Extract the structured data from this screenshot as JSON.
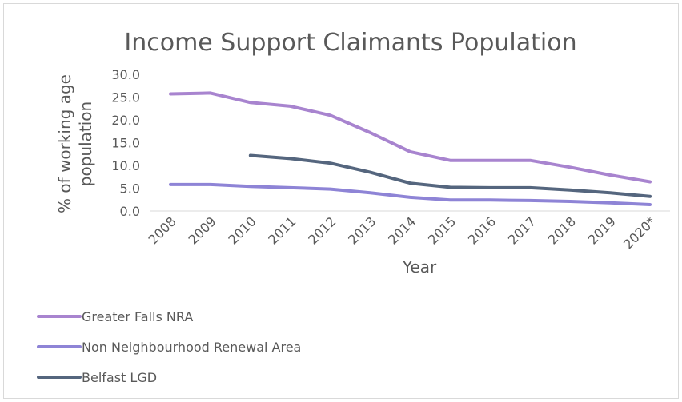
{
  "chart_data": {
    "type": "line",
    "title": "Income Support Claimants Population",
    "xlabel": "Year",
    "ylabel": "% of working age population",
    "ylim": [
      0,
      30
    ],
    "yticks": [
      "0.0",
      "5.0",
      "10.0",
      "15.0",
      "20.0",
      "25.0",
      "30.0"
    ],
    "categories": [
      "2008",
      "2009",
      "2010",
      "2011",
      "2012",
      "2013",
      "2014",
      "2015",
      "2016",
      "2017",
      "2018",
      "2019",
      "2020*"
    ],
    "grid": false,
    "legend_position": "bottom-left",
    "series": [
      {
        "name": "Greater Falls NRA",
        "color": "#a884cf",
        "values": [
          25.7,
          25.9,
          23.8,
          23.0,
          21.0,
          17.2,
          13.0,
          11.1,
          11.1,
          11.1,
          9.6,
          7.9,
          6.4
        ]
      },
      {
        "name": "Non Neighbourhood Renewal Area",
        "color": "#8e84d6",
        "values": [
          5.8,
          5.8,
          5.4,
          5.1,
          4.8,
          4.0,
          3.0,
          2.4,
          2.4,
          2.3,
          2.1,
          1.8,
          1.4
        ]
      },
      {
        "name": "Belfast LGD",
        "color": "#55667e",
        "values": [
          null,
          null,
          12.2,
          11.5,
          10.5,
          8.5,
          6.1,
          5.2,
          5.1,
          5.1,
          4.6,
          4.0,
          3.2
        ]
      }
    ]
  }
}
